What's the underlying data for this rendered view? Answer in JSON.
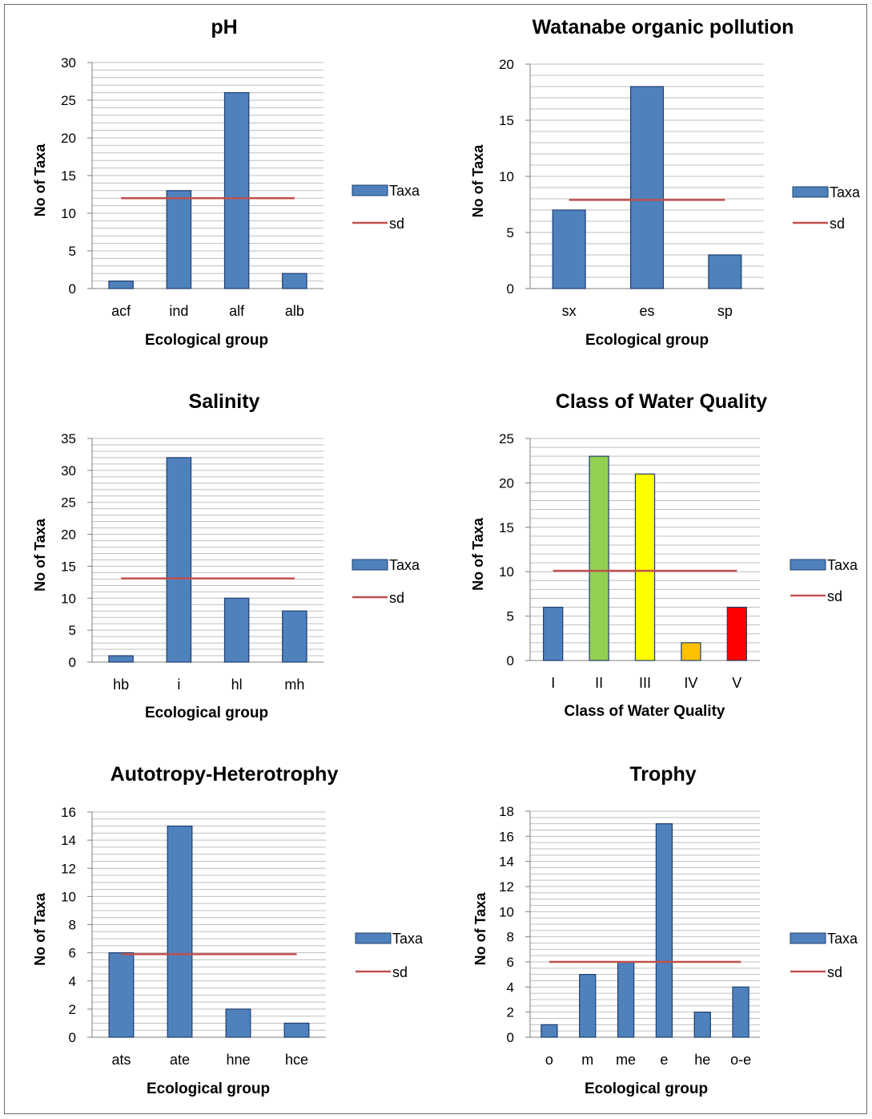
{
  "colors": {
    "bar": "#4f81bd",
    "bar_stroke": "#1f3f6e",
    "sd_line": "#c0504d",
    "grid": "#bfbfbf",
    "axis": "#7f7f7f",
    "class_colors": [
      "#4f81bd",
      "#92d050",
      "#ffff00",
      "#ffc000",
      "#ff0000"
    ]
  },
  "chart_data": [
    {
      "type": "bar",
      "title": "pH",
      "xlabel": "Ecological group",
      "ylabel": "No of Taxa",
      "categories": [
        "acf",
        "ind",
        "alf",
        "alb"
      ],
      "series": [
        {
          "name": "Taxa",
          "values": [
            1,
            13,
            26,
            2
          ]
        },
        {
          "name": "sd",
          "type": "line",
          "value": 12
        }
      ],
      "ylim": [
        0,
        30
      ],
      "yticks": [
        0,
        5,
        10,
        15,
        20,
        25,
        30
      ],
      "minor_step": 1,
      "grid": true,
      "legend": "right"
    },
    {
      "type": "bar",
      "title": "Watanabe organic pollution",
      "xlabel": "Ecological group",
      "ylabel": "No of Taxa",
      "categories": [
        "sx",
        "es",
        "sp"
      ],
      "series": [
        {
          "name": "Taxa",
          "values": [
            7,
            18,
            3
          ]
        },
        {
          "name": "sd",
          "type": "line",
          "value": 7.9
        }
      ],
      "ylim": [
        0,
        20
      ],
      "yticks": [
        0,
        5,
        10,
        15,
        20
      ],
      "minor_step": 1,
      "grid": true,
      "legend": "right"
    },
    {
      "type": "bar",
      "title": "Salinity",
      "xlabel": "Ecological group",
      "ylabel": "No of Taxa",
      "categories": [
        "hb",
        "i",
        "hl",
        "mh"
      ],
      "series": [
        {
          "name": "Taxa",
          "values": [
            1,
            32,
            10,
            8
          ]
        },
        {
          "name": "sd",
          "type": "line",
          "value": 13.1
        }
      ],
      "ylim": [
        0,
        35
      ],
      "yticks": [
        0,
        5,
        10,
        15,
        20,
        25,
        30,
        35
      ],
      "minor_step": 1,
      "grid": true,
      "legend": "right"
    },
    {
      "type": "bar",
      "title": "Class of Water Quality",
      "xlabel": "Class of Water Quality",
      "ylabel": "No of Taxa",
      "categories": [
        "I",
        "II",
        "III",
        "IV",
        "V"
      ],
      "series": [
        {
          "name": "Taxa",
          "values": [
            6,
            23,
            21,
            2,
            6
          ]
        },
        {
          "name": "sd",
          "type": "line",
          "value": 10.1
        }
      ],
      "bar_colors": [
        "#4f81bd",
        "#92d050",
        "#ffff00",
        "#ffc000",
        "#ff0000"
      ],
      "ylim": [
        0,
        25
      ],
      "yticks": [
        0,
        5,
        10,
        15,
        20,
        25
      ],
      "minor_step": 1,
      "grid": true,
      "legend": "right"
    },
    {
      "type": "bar",
      "title": "Autotropy-Heterotrophy",
      "xlabel": "Ecological group",
      "ylabel": "No of Taxa",
      "categories": [
        "ats",
        "ate",
        "hne",
        "hce"
      ],
      "series": [
        {
          "name": "Taxa",
          "values": [
            6,
            15,
            2,
            1
          ]
        },
        {
          "name": "sd",
          "type": "line",
          "value": 5.9
        }
      ],
      "ylim": [
        0,
        16
      ],
      "yticks": [
        0,
        2,
        4,
        6,
        8,
        10,
        12,
        14,
        16
      ],
      "minor_step": 0.5,
      "grid": true,
      "legend": "right"
    },
    {
      "type": "bar",
      "title": "Trophy",
      "xlabel": "Ecological group",
      "ylabel": "No of Taxa",
      "categories": [
        "o",
        "m",
        "me",
        "e",
        "he",
        "o-e"
      ],
      "series": [
        {
          "name": "Taxa",
          "values": [
            1,
            5,
            6,
            17,
            2,
            4
          ]
        },
        {
          "name": "sd",
          "type": "line",
          "value": 6
        }
      ],
      "ylim": [
        0,
        18
      ],
      "yticks": [
        0,
        2,
        4,
        6,
        8,
        10,
        12,
        14,
        16,
        18
      ],
      "minor_step": 0.5,
      "grid": true,
      "legend": "right"
    }
  ]
}
